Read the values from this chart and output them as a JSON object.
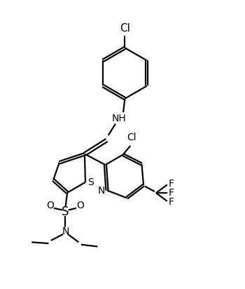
{
  "background_color": "#ffffff",
  "line_color": "#000000",
  "bond_lw": 1.6,
  "font_size": 10,
  "fig_width": 3.5,
  "fig_height": 4.12,
  "dpi": 100,
  "xlim": [
    0,
    10
  ],
  "ylim": [
    0,
    11.8
  ]
}
